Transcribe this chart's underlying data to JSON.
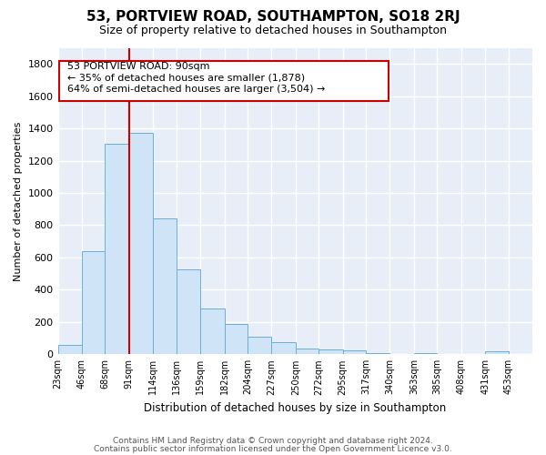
{
  "title": "53, PORTVIEW ROAD, SOUTHAMPTON, SO18 2RJ",
  "subtitle": "Size of property relative to detached houses in Southampton",
  "xlabel": "Distribution of detached houses by size in Southampton",
  "ylabel": "Number of detached properties",
  "bar_color": "#d0e4f7",
  "bar_edge_color": "#6baed6",
  "bg_color": "#e8eef8",
  "grid_color": "#ffffff",
  "annotation_text": "53 PORTVIEW ROAD: 90sqm\n← 35% of detached houses are smaller (1,878)\n64% of semi-detached houses are larger (3,504) →",
  "redline_x": 91,
  "redline_color": "#cc0000",
  "footer1": "Contains HM Land Registry data © Crown copyright and database right 2024.",
  "footer2": "Contains public sector information licensed under the Open Government Licence v3.0.",
  "bins": [
    23,
    46,
    68,
    91,
    114,
    136,
    159,
    182,
    204,
    227,
    250,
    272,
    295,
    317,
    340,
    363,
    385,
    408,
    431,
    453,
    476
  ],
  "counts": [
    60,
    638,
    1303,
    1375,
    843,
    525,
    285,
    187,
    110,
    73,
    38,
    30,
    22,
    5,
    0,
    5,
    0,
    0,
    18,
    0
  ],
  "ylim": [
    0,
    1900
  ],
  "yticks": [
    0,
    200,
    400,
    600,
    800,
    1000,
    1200,
    1400,
    1600,
    1800
  ]
}
